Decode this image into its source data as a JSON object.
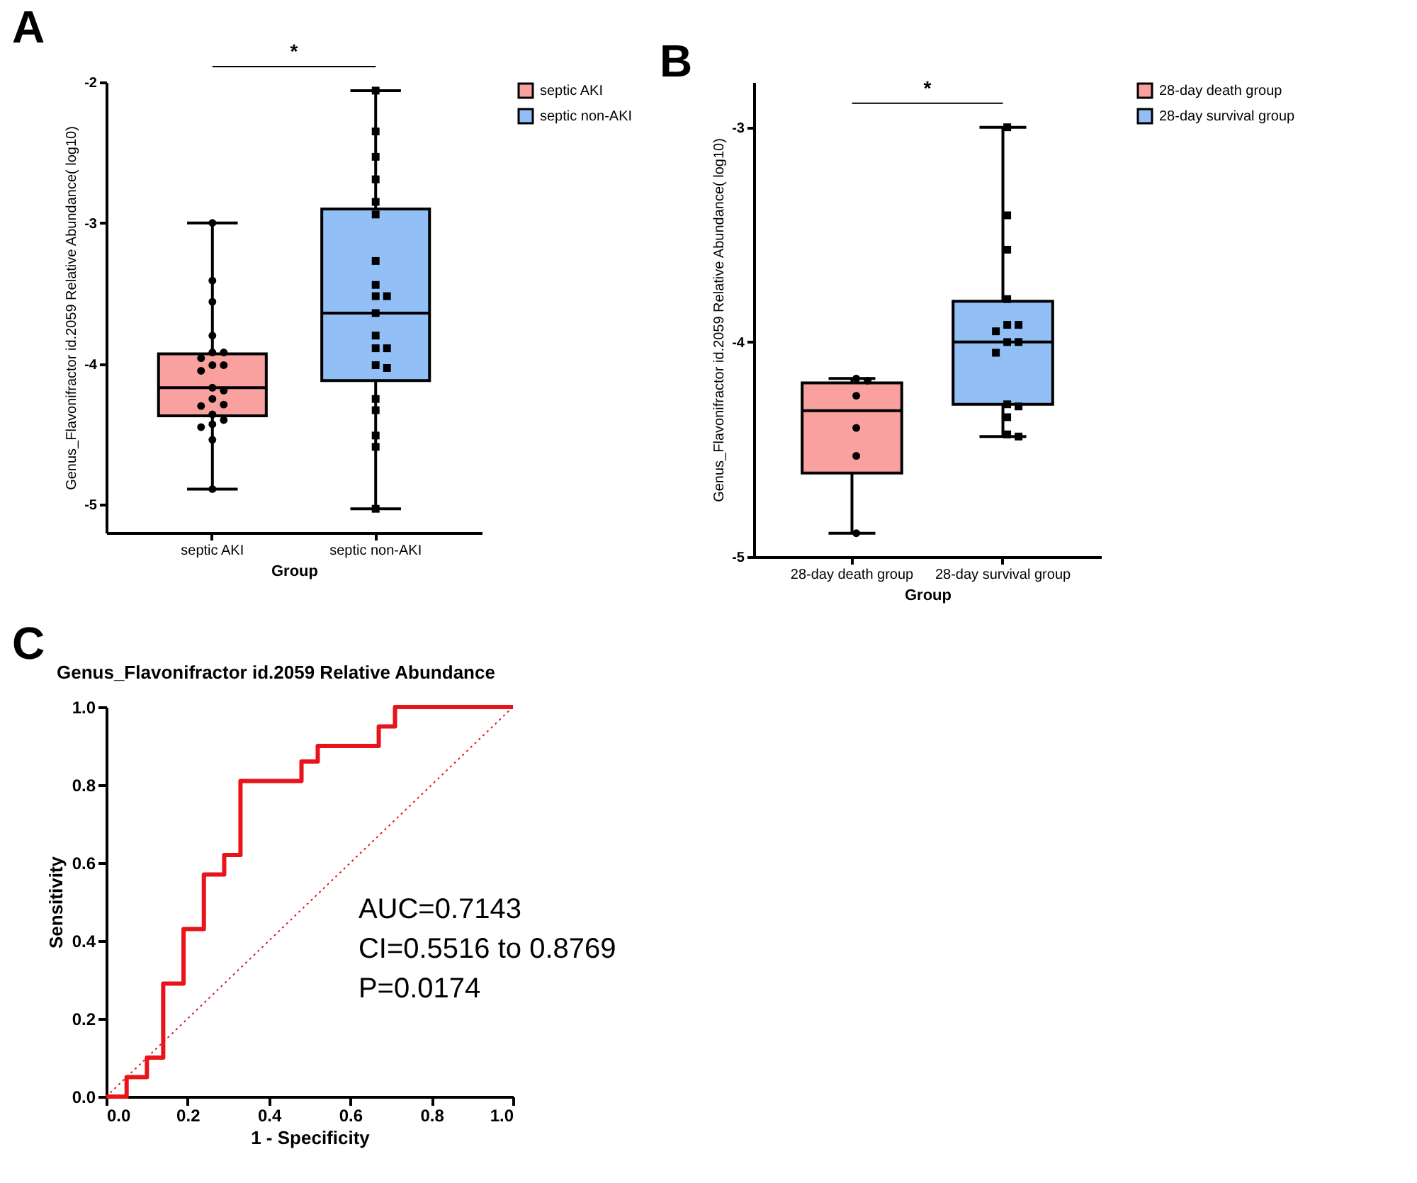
{
  "chart_data": [
    {
      "type": "box",
      "annotations": [
        "A",
        "*"
      ],
      "categories": [
        "septic AKI",
        "septic non-AKI"
      ],
      "xlabel": "Group",
      "ylabel": "Genus_Flavonifractor id.2059 Relative Abundance( log10)",
      "ylim": [
        -5.2,
        -2
      ],
      "yticks": [
        -5,
        -4,
        -3,
        -2
      ],
      "legend": "top right",
      "grid": false,
      "series": [
        {
          "name": "septic AKI",
          "color": "#f8a19f",
          "boxes": [
            {
              "low": -4.89,
              "q1": -4.37,
              "median": -4.17,
              "q3": -3.93,
              "high": -3.0
            },
            null
          ]
        },
        {
          "name": "septic non-AKI",
          "color": "#92bff5",
          "boxes": [
            null,
            {
              "low": -5.03,
              "q1": -4.12,
              "median": -3.64,
              "q3": -2.9,
              "high": -2.06
            }
          ]
        },
        {
          "type": "scatter",
          "color": "#000000",
          "marker": "circle",
          "x": [
            "septic AKI",
            "septic AKI",
            "septic AKI",
            "septic AKI",
            "septic AKI",
            "septic AKI",
            "septic AKI",
            "septic AKI",
            "septic AKI",
            "septic AKI",
            "septic AKI",
            "septic AKI",
            "septic AKI",
            "septic AKI",
            "septic AKI",
            "septic AKI",
            "septic AKI",
            "septic AKI",
            "septic AKI",
            "septic AKI",
            "septic AKI"
          ],
          "values": [
            -3.0,
            -3.41,
            -3.56,
            -3.8,
            -3.92,
            -3.92,
            -3.96,
            -4.01,
            -4.01,
            -4.05,
            -4.17,
            -4.19,
            -4.25,
            -4.29,
            -4.3,
            -4.36,
            -4.4,
            -4.43,
            -4.45,
            -4.54,
            -4.89
          ]
        },
        {
          "type": "scatter",
          "color": "#000000",
          "marker": "square",
          "x": [
            "septic non-AKI",
            "septic non-AKI",
            "septic non-AKI",
            "septic non-AKI",
            "septic non-AKI",
            "septic non-AKI",
            "septic non-AKI",
            "septic non-AKI",
            "septic non-AKI",
            "septic non-AKI",
            "septic non-AKI",
            "septic non-AKI",
            "septic non-AKI",
            "septic non-AKI",
            "septic non-AKI",
            "septic non-AKI",
            "septic non-AKI",
            "septic non-AKI",
            "septic non-AKI",
            "septic non-AKI",
            "septic non-AKI"
          ],
          "values": [
            -2.06,
            -2.35,
            -2.53,
            -2.69,
            -2.85,
            -2.94,
            -3.27,
            -3.44,
            -3.52,
            -3.52,
            -3.64,
            -3.8,
            -3.89,
            -3.89,
            -4.01,
            -4.03,
            -4.25,
            -4.33,
            -4.51,
            -4.59,
            -5.03
          ]
        }
      ]
    },
    {
      "type": "box",
      "annotations": [
        "B",
        "*"
      ],
      "categories": [
        "28-day death group",
        "28-day survival group"
      ],
      "xlabel": "Group",
      "ylabel": "Genus_Flavonifractor id.2059 Relative Abundance( log10)",
      "ylim": [
        -5,
        -2.79
      ],
      "yticks": [
        -5,
        -4,
        -3
      ],
      "legend": "top right",
      "grid": false,
      "series": [
        {
          "name": "28-day death group",
          "color": "#f8a19f",
          "boxes": [
            {
              "low": -4.89,
              "q1": -4.61,
              "median": -4.32,
              "q3": -4.19,
              "high": -4.17
            },
            null
          ]
        },
        {
          "name": "28-day survival group",
          "color": "#92bff5",
          "boxes": [
            null,
            {
              "low": -4.44,
              "q1": -4.29,
              "median": -4.0,
              "q3": -3.81,
              "high": -3.0
            }
          ]
        },
        {
          "type": "scatter",
          "color": "#000000",
          "marker": "circle",
          "x": [
            "28-day death group",
            "28-day death group",
            "28-day death group",
            "28-day death group",
            "28-day death group",
            "28-day death group"
          ],
          "values": [
            -4.17,
            -4.18,
            -4.25,
            -4.4,
            -4.53,
            -4.89
          ]
        },
        {
          "type": "scatter",
          "color": "#000000",
          "marker": "square",
          "x": [
            "28-day survival group",
            "28-day survival group",
            "28-day survival group",
            "28-day survival group",
            "28-day survival group",
            "28-day survival group",
            "28-day survival group",
            "28-day survival group",
            "28-day survival group",
            "28-day survival group",
            "28-day survival group",
            "28-day survival group",
            "28-day survival group",
            "28-day survival group",
            "28-day survival group"
          ],
          "values": [
            -3.0,
            -3.41,
            -3.57,
            -3.8,
            -3.92,
            -3.92,
            -3.95,
            -4.0,
            -4.0,
            -4.05,
            -4.29,
            -4.3,
            -4.35,
            -4.43,
            -4.44
          ]
        }
      ]
    },
    {
      "type": "step",
      "title": "Genus_Flavonifractor id.2059 Relative Abundance",
      "annotations": [
        "C",
        "AUC=0.7143",
        "CI=0.5516 to 0.8769",
        "P=0.0174"
      ],
      "xlabel": "1 - Specificity",
      "ylabel": "Sensitivity",
      "xlim": [
        0,
        1
      ],
      "ylim": [
        0,
        1
      ],
      "xticks": [
        {
          "value": 0,
          "label": "0.0"
        },
        0.2,
        0.4,
        0.6,
        0.8,
        {
          "value": 1,
          "label": "1.0"
        }
      ],
      "yticks": [
        {
          "value": 0,
          "label": "0.0"
        },
        0.2,
        0.4,
        0.6,
        0.8,
        {
          "value": 1,
          "label": "1.0"
        }
      ],
      "grid": false,
      "series": [
        {
          "color": "#e8141a",
          "x": [
            0,
            0.05,
            0.1,
            0.14,
            0.19,
            0.24,
            0.29,
            0.33,
            0.48,
            0.52,
            0.67,
            0.71,
            1
          ],
          "values": [
            0,
            0.05,
            0.1,
            0.29,
            0.43,
            0.57,
            0.62,
            0.81,
            0.86,
            0.9,
            0.95,
            1,
            1
          ]
        },
        {
          "type": "line",
          "color": "#e8141a",
          "line_style": "dotted",
          "x": [
            0,
            1
          ],
          "values": [
            0,
            1
          ]
        }
      ]
    }
  ]
}
